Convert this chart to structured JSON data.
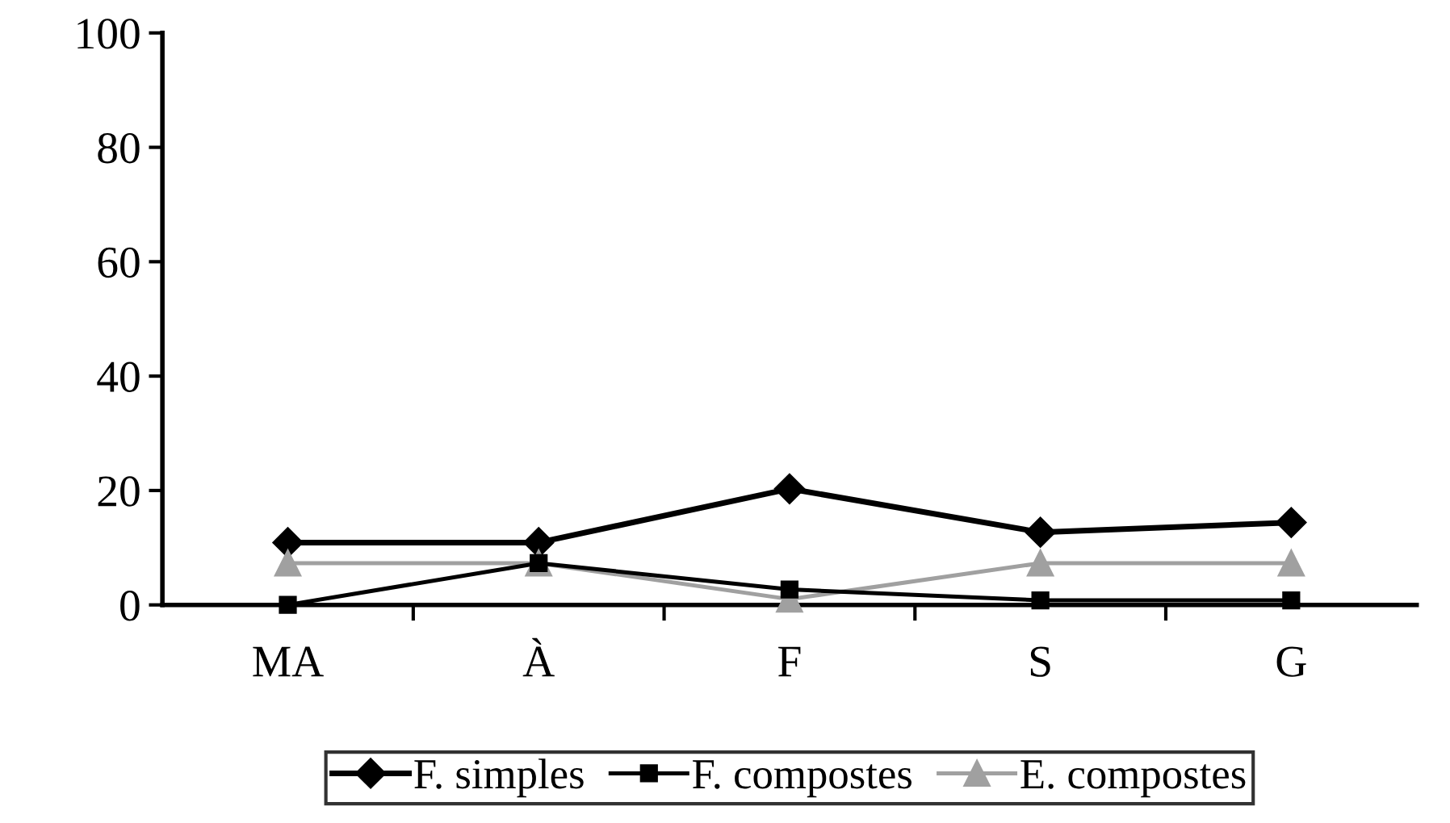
{
  "chart_data": {
    "type": "line",
    "categories": [
      "MA",
      "À",
      "F",
      "S",
      "G"
    ],
    "series": [
      {
        "name": "F. simples",
        "color": "#000000",
        "marker": "diamond",
        "values": [
          10.9,
          10.9,
          20.3,
          12.7,
          14.4
        ]
      },
      {
        "name": "F. compostes",
        "color": "#000000",
        "marker": "square",
        "values": [
          0,
          7.3,
          2.7,
          0.8,
          0.8
        ]
      },
      {
        "name": "E. compostes",
        "color": "#a0a0a0",
        "marker": "triangle",
        "values": [
          7.3,
          7.3,
          1,
          7.3,
          7.3
        ]
      }
    ],
    "ylim": [
      0,
      100
    ],
    "yticks": [
      0,
      20,
      40,
      60,
      80,
      100
    ],
    "grid": false,
    "legend": "bottom"
  }
}
